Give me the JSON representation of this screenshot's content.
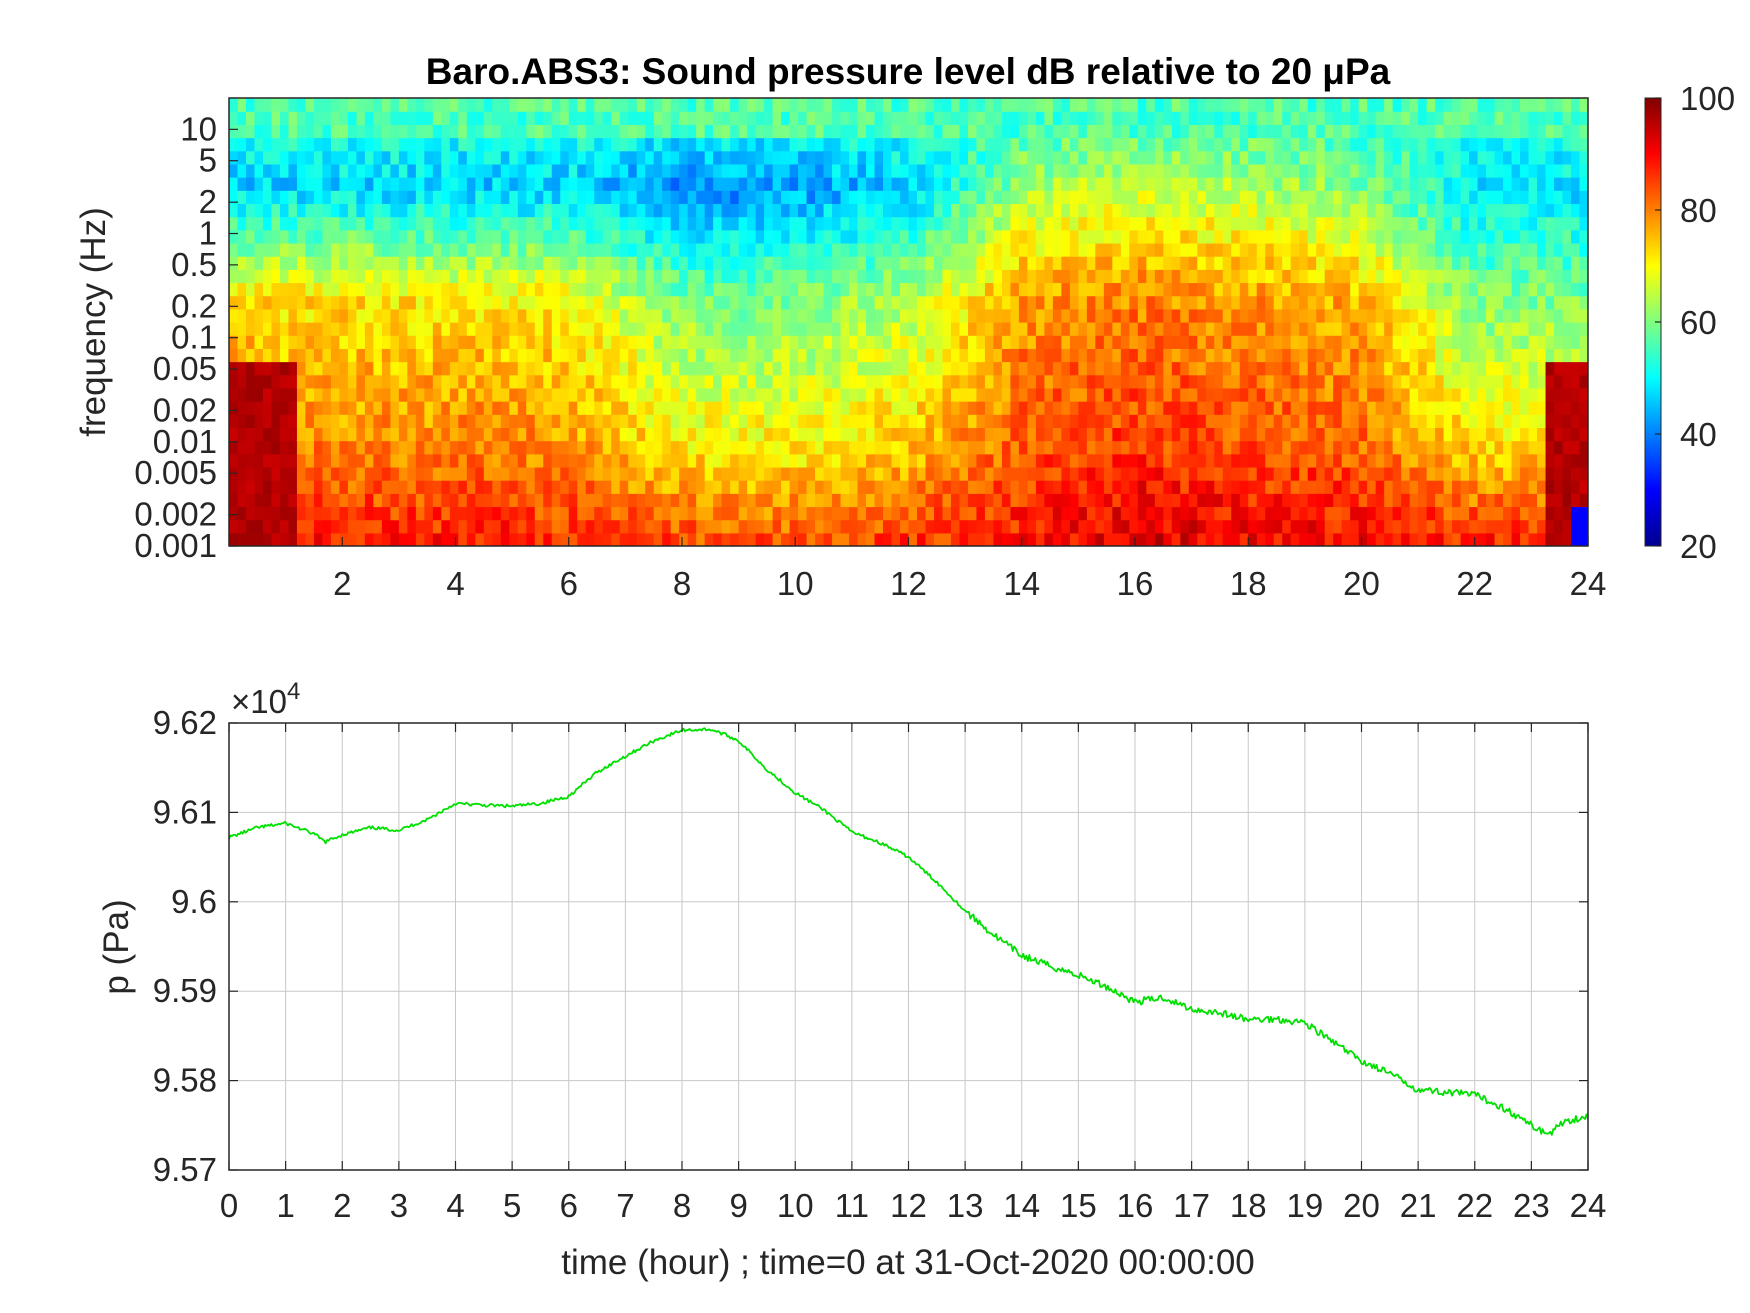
{
  "chart_data": [
    {
      "type": "heatmap",
      "title": "Baro.ABS3: Sound pressure level dB relative to 20 μPa",
      "ylabel": "frequency (Hz)",
      "y_scale": "log",
      "ylim": [
        0.001,
        20
      ],
      "xlim": [
        0,
        24
      ],
      "x_ticks": [
        "2",
        "4",
        "6",
        "8",
        "10",
        "12",
        "14",
        "16",
        "18",
        "20",
        "22",
        "24"
      ],
      "y_ticks": [
        "0.001",
        "0.002",
        "0.005",
        "0.01",
        "0.02",
        "0.05",
        "0.1",
        "0.2",
        "0.5",
        "1",
        "2",
        "5",
        "10"
      ],
      "colorbar": {
        "min": 20,
        "max": 100,
        "ticks": [
          "20",
          "40",
          "60",
          "80",
          "100"
        ],
        "colormap": "jet"
      },
      "level_by_hour": {
        "hours": [
          0,
          2,
          4,
          6,
          8,
          10,
          12,
          14,
          16,
          18,
          20,
          22,
          24
        ],
        "low_freq_db": [
          95,
          88,
          89,
          87,
          85,
          84,
          86,
          89,
          93,
          91,
          90,
          88,
          88
        ],
        "mid_freq_db": [
          72,
          72,
          72,
          71,
          60,
          60,
          64,
          78,
          80,
          78,
          76,
          60,
          60
        ],
        "high_freq_db": [
          46,
          47,
          46,
          46,
          40,
          42,
          46,
          62,
          66,
          64,
          60,
          48,
          48
        ]
      }
    },
    {
      "type": "line",
      "xlabel": "time (hour) ; time=0 at 31-Oct-2020 00:00:00",
      "ylabel": "p (Pa)",
      "exponent_label": "×10",
      "exponent_power": "4",
      "xlim": [
        0,
        24
      ],
      "ylim": [
        95700,
        96200
      ],
      "grid": true,
      "x_ticks": [
        "0",
        "1",
        "2",
        "3",
        "4",
        "5",
        "6",
        "7",
        "8",
        "9",
        "10",
        "11",
        "12",
        "13",
        "14",
        "15",
        "16",
        "17",
        "18",
        "19",
        "20",
        "21",
        "22",
        "23",
        "24"
      ],
      "y_ticks": [
        "9.57",
        "9.58",
        "9.59",
        "9.6",
        "9.61",
        "9.62"
      ],
      "series": [
        {
          "color": "#00e000",
          "x": [
            0,
            0.5,
            1,
            1.5,
            1.7,
            2,
            2.5,
            3,
            3.5,
            4,
            4.5,
            5,
            5.5,
            6,
            6.5,
            7,
            7.5,
            8,
            8.5,
            8.8,
            9,
            9.5,
            10,
            10.5,
            11,
            11.5,
            12,
            12.5,
            13,
            13.5,
            14,
            14.5,
            15,
            15.5,
            16,
            16.5,
            17,
            17.5,
            18,
            18.5,
            19,
            19.5,
            20,
            20.5,
            21,
            21.5,
            22,
            22.5,
            23,
            23.3,
            23.6,
            24
          ],
          "values": [
            96072,
            96083,
            96088,
            96076,
            96067,
            96075,
            96083,
            96080,
            96092,
            96110,
            96108,
            96107,
            96110,
            96118,
            96145,
            96163,
            96180,
            96192,
            96193,
            96186,
            96180,
            96148,
            96122,
            96103,
            96078,
            96066,
            96050,
            96022,
            95990,
            95963,
            95940,
            95928,
            95918,
            95905,
            95888,
            95893,
            95880,
            95876,
            95868,
            95869,
            95865,
            95843,
            95822,
            95808,
            95790,
            95787,
            95784,
            95770,
            95750,
            95740,
            95755,
            95760
          ]
        }
      ]
    }
  ]
}
